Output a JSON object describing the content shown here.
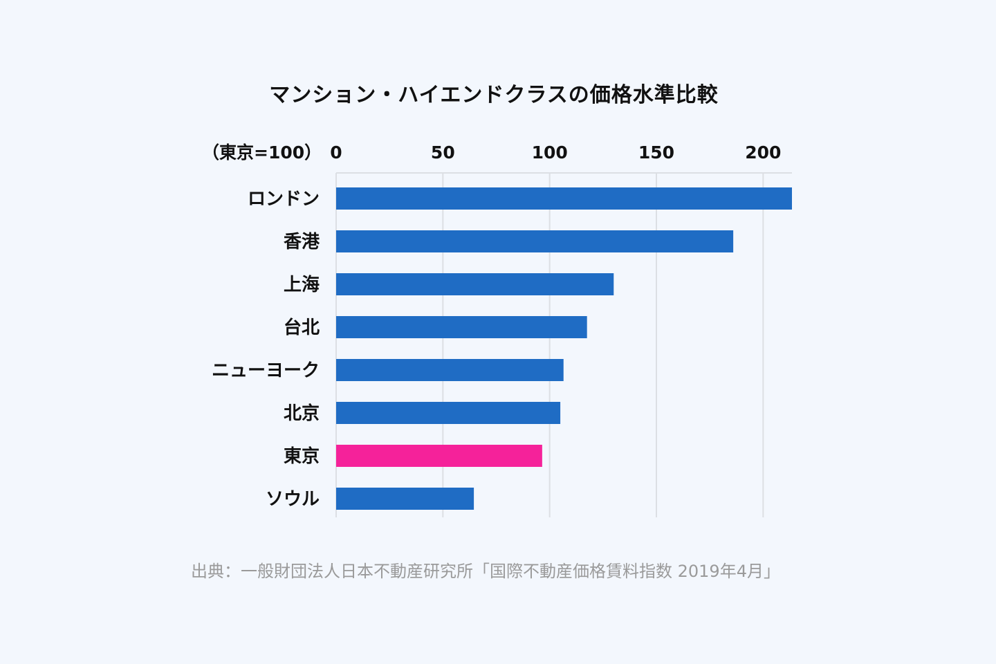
{
  "chart_data": {
    "type": "bar",
    "orientation": "horizontal",
    "title": "マンション・ハイエンドクラスの価格水準比較",
    "unit_label": "（東京=100）",
    "categories": [
      "ロンドン",
      "香港",
      "上海",
      "台北",
      "ニューヨーク",
      "北京",
      "東京",
      "ソウル"
    ],
    "values": [
      213.5,
      186,
      130,
      117.5,
      106.5,
      105,
      96.5,
      64.5
    ],
    "highlight_category": "東京",
    "xlim": [
      0,
      213.5
    ],
    "xticks": [
      0,
      50,
      100,
      150,
      200
    ],
    "grid": true,
    "colors": {
      "bar": "#1f6cc4",
      "highlight": "#f5229a",
      "grid": "#dcdfe4"
    }
  },
  "source": "出典：一般財団法人日本不動産研究所「国際不動産価格賃料指数 2019年4月」"
}
